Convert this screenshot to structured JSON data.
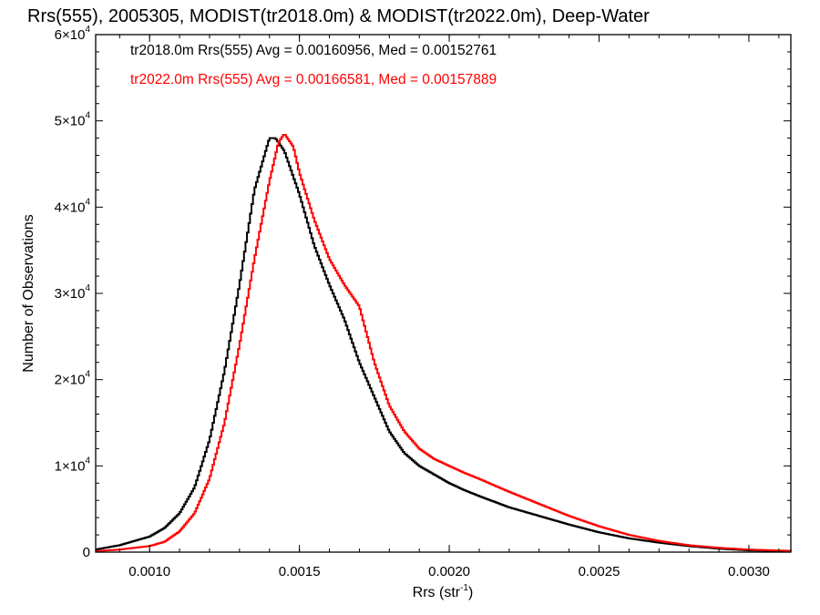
{
  "chart_data": {
    "type": "line",
    "title": "Rrs(555), 2005305, MODIST(tr2018.0m) & MODIST(tr2022.0m), Deep-Water",
    "xlabel_main": "Rrs (str",
    "xlabel_sup": "-1",
    "xlabel_close": ")",
    "ylabel": "Number of Observations",
    "xlim": [
      0.00082,
      0.00314
    ],
    "ylim": [
      0,
      60000
    ],
    "x_ticks": [
      "0.0010",
      "0.0015",
      "0.0020",
      "0.0025",
      "0.0030"
    ],
    "x_tick_values": [
      0.001,
      0.0015,
      0.002,
      0.0025,
      0.003
    ],
    "y_ticks": [
      {
        "value": 0,
        "mant": "0",
        "exp": ""
      },
      {
        "value": 10000,
        "mant": "1×10",
        "exp": "4"
      },
      {
        "value": 20000,
        "mant": "2×10",
        "exp": "4"
      },
      {
        "value": 30000,
        "mant": "3×10",
        "exp": "4"
      },
      {
        "value": 40000,
        "mant": "4×10",
        "exp": "4"
      },
      {
        "value": 50000,
        "mant": "5×10",
        "exp": "4"
      },
      {
        "value": 60000,
        "mant": "6×10",
        "exp": "4"
      }
    ],
    "legend_placement": "top-left",
    "series": [
      {
        "name": "tr2018.0m Rrs(555) Avg = 0.00160956, Med = 0.00152761",
        "color": "#000000",
        "points": [
          [
            0.00082,
            300
          ],
          [
            0.0009,
            800
          ],
          [
            0.001,
            1800
          ],
          [
            0.00105,
            2800
          ],
          [
            0.0011,
            4500
          ],
          [
            0.00115,
            7500
          ],
          [
            0.0012,
            13000
          ],
          [
            0.00125,
            21000
          ],
          [
            0.0013,
            31000
          ],
          [
            0.00135,
            42000
          ],
          [
            0.0014,
            48000
          ],
          [
            0.00142,
            48000
          ],
          [
            0.00145,
            46500
          ],
          [
            0.0015,
            41500
          ],
          [
            0.00155,
            35500
          ],
          [
            0.0016,
            31000
          ],
          [
            0.00165,
            27000
          ],
          [
            0.0017,
            22000
          ],
          [
            0.00175,
            18000
          ],
          [
            0.0018,
            14000
          ],
          [
            0.00185,
            11500
          ],
          [
            0.0019,
            10000
          ],
          [
            0.00195,
            9000
          ],
          [
            0.002,
            8000
          ],
          [
            0.00205,
            7200
          ],
          [
            0.0021,
            6500
          ],
          [
            0.0022,
            5200
          ],
          [
            0.0023,
            4200
          ],
          [
            0.0024,
            3200
          ],
          [
            0.0025,
            2300
          ],
          [
            0.0026,
            1600
          ],
          [
            0.0027,
            1100
          ],
          [
            0.0028,
            700
          ],
          [
            0.0029,
            400
          ],
          [
            0.003,
            200
          ],
          [
            0.00314,
            100
          ]
        ]
      },
      {
        "name": "tr2022.0m Rrs(555) Avg = 0.00166581, Med = 0.00157889",
        "color": "#ff0000",
        "points": [
          [
            0.00082,
            100
          ],
          [
            0.0009,
            300
          ],
          [
            0.001,
            700
          ],
          [
            0.00105,
            1200
          ],
          [
            0.0011,
            2400
          ],
          [
            0.00115,
            4500
          ],
          [
            0.0012,
            8500
          ],
          [
            0.00125,
            15000
          ],
          [
            0.0013,
            24000
          ],
          [
            0.00135,
            34000
          ],
          [
            0.0014,
            43000
          ],
          [
            0.00143,
            47500
          ],
          [
            0.00145,
            48500
          ],
          [
            0.00148,
            47000
          ],
          [
            0.0015,
            44000
          ],
          [
            0.00155,
            38500
          ],
          [
            0.0016,
            34000
          ],
          [
            0.00165,
            31000
          ],
          [
            0.0017,
            28500
          ],
          [
            0.00175,
            22000
          ],
          [
            0.0018,
            17000
          ],
          [
            0.00185,
            14000
          ],
          [
            0.0019,
            12000
          ],
          [
            0.00195,
            10800
          ],
          [
            0.002,
            10000
          ],
          [
            0.00205,
            9200
          ],
          [
            0.0021,
            8500
          ],
          [
            0.0022,
            7000
          ],
          [
            0.0023,
            5600
          ],
          [
            0.0024,
            4200
          ],
          [
            0.0025,
            3000
          ],
          [
            0.0026,
            2000
          ],
          [
            0.0027,
            1300
          ],
          [
            0.0028,
            800
          ],
          [
            0.0029,
            500
          ],
          [
            0.003,
            300
          ],
          [
            0.00314,
            150
          ]
        ]
      }
    ]
  }
}
